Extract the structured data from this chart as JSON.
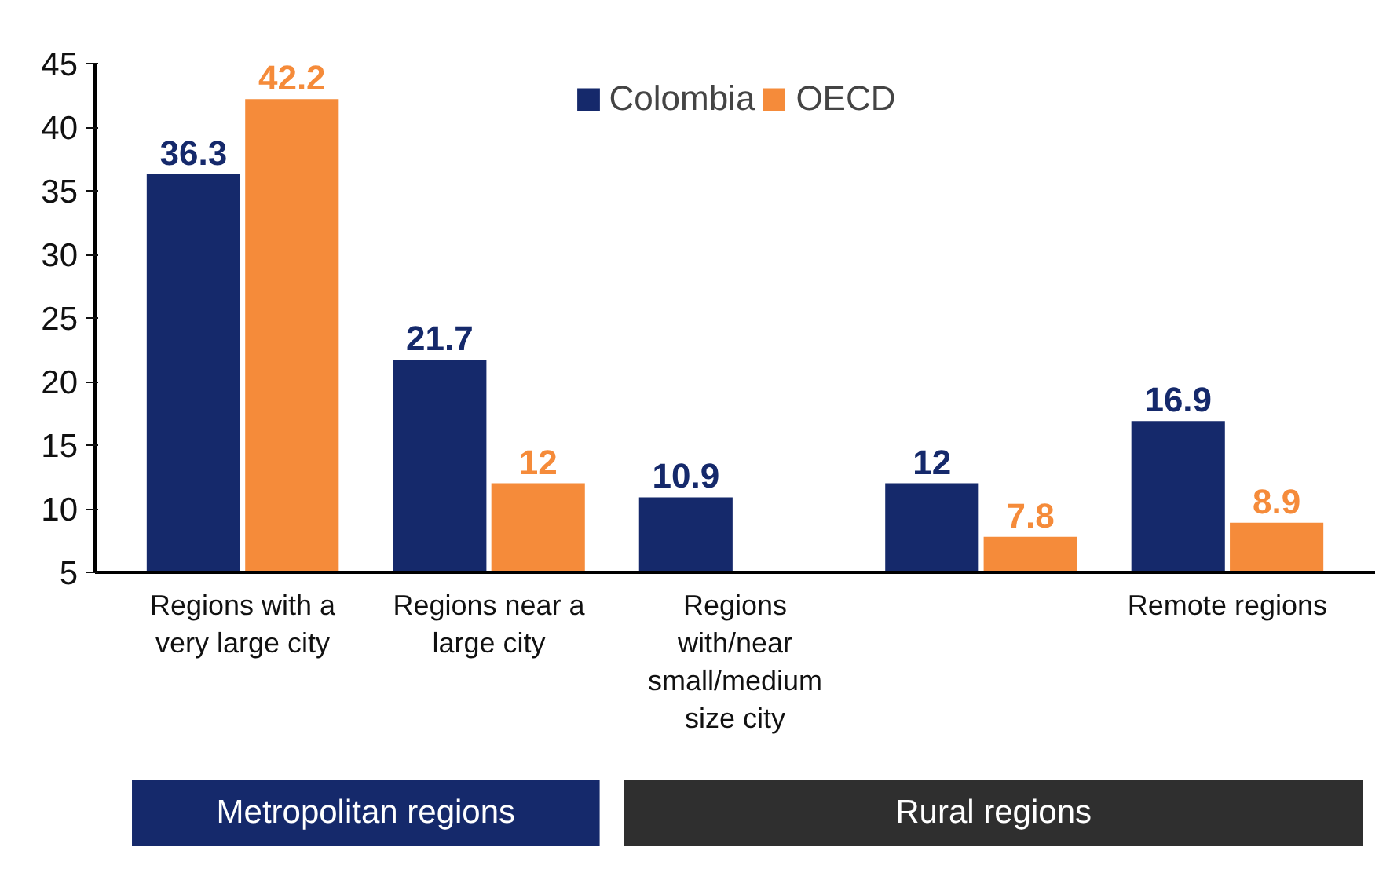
{
  "chart_data": {
    "type": "bar",
    "categories": [
      "Regions with a very large city",
      "Regions near a large city",
      "Regions with/near small/medium size city",
      null,
      "Remote regions"
    ],
    "series": [
      {
        "name": "Colombia",
        "color": "#15296b",
        "values": [
          36.3,
          21.7,
          10.9,
          12,
          16.9
        ]
      },
      {
        "name": "OECD",
        "color": "#f58b3a",
        "values": [
          42.2,
          12,
          null,
          7.8,
          8.9
        ]
      }
    ],
    "ylim": [
      5,
      45
    ],
    "yticks": [
      5,
      10,
      15,
      20,
      25,
      30,
      35,
      40,
      45
    ],
    "data_labels": true,
    "legend": "top",
    "grid": false,
    "annotations": [
      "Metropolitan regions",
      "Rural regions"
    ]
  }
}
